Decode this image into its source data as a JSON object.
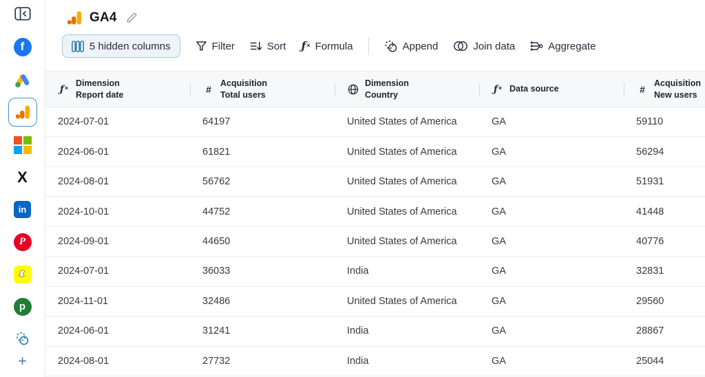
{
  "app": {
    "title": "GA4"
  },
  "colors": {
    "accent_blue": "#2e7ea8",
    "active_border": "#3d8ec9",
    "ga_orange": "#f9ab00",
    "ga_dark_orange": "#e37400"
  },
  "sidebar": {
    "icons": [
      "collapse-panel",
      "facebook",
      "google-ads",
      "google-analytics",
      "microsoft",
      "x",
      "linkedin",
      "pinterest",
      "snapchat",
      "pipedrive",
      "blend"
    ],
    "facebook_letter": "f",
    "linkedin_letters": "in",
    "pinterest_letter": "P",
    "pipedrive_letter": "p",
    "x_letter": "X",
    "add_label": "+"
  },
  "toolbar": {
    "hidden_columns_label": "5 hidden columns",
    "filter_label": "Filter",
    "sort_label": "Sort",
    "formula_label": "Formula",
    "append_label": "Append",
    "join_label": "Join data",
    "aggregate_label": "Aggregate"
  },
  "table": {
    "columns": [
      {
        "icon": "formula",
        "line1": "Dimension",
        "line2": "Report date"
      },
      {
        "icon": "number",
        "line1": "Acquisition",
        "line2": "Total users"
      },
      {
        "icon": "globe",
        "line1": "Dimension",
        "line2": "Country"
      },
      {
        "icon": "formula",
        "line1": "Data source",
        "line2": ""
      },
      {
        "icon": "number",
        "line1": "Acquisition",
        "line2": "New users"
      }
    ],
    "rows": [
      [
        "2024-07-01",
        "64197",
        "United States of America",
        "GA",
        "59110"
      ],
      [
        "2024-06-01",
        "61821",
        "United States of America",
        "GA",
        "56294"
      ],
      [
        "2024-08-01",
        "56762",
        "United States of America",
        "GA",
        "51931"
      ],
      [
        "2024-10-01",
        "44752",
        "United States of America",
        "GA",
        "41448"
      ],
      [
        "2024-09-01",
        "44650",
        "United States of America",
        "GA",
        "40776"
      ],
      [
        "2024-07-01",
        "36033",
        "India",
        "GA",
        "32831"
      ],
      [
        "2024-11-01",
        "32486",
        "United States of America",
        "GA",
        "29560"
      ],
      [
        "2024-06-01",
        "31241",
        "India",
        "GA",
        "28867"
      ],
      [
        "2024-08-01",
        "27732",
        "India",
        "GA",
        "25044"
      ]
    ]
  }
}
